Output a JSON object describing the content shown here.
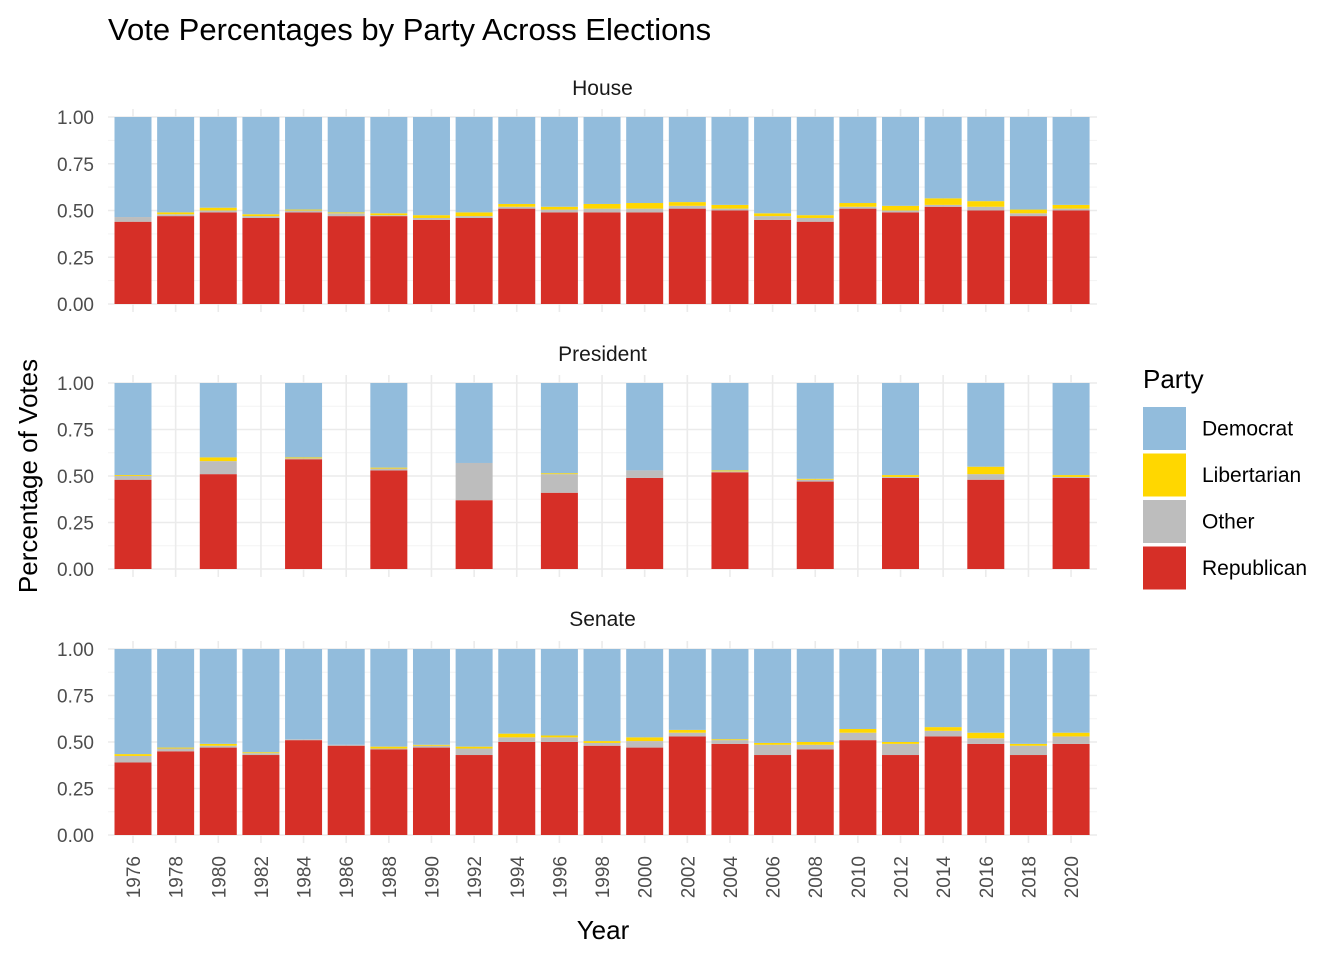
{
  "chart_data": {
    "type": "bar",
    "stacked": true,
    "title": "Vote Percentages by Party Across Elections",
    "xlabel": "Year",
    "ylabel": "Percentage of Votes",
    "ylim": [
      0,
      1
    ],
    "yticks": [
      "0.00",
      "0.25",
      "0.50",
      "0.75",
      "1.00"
    ],
    "grid": true,
    "legend": {
      "title": "Party",
      "position": "right",
      "entries": [
        {
          "name": "Democrat",
          "color": "#92bcdc"
        },
        {
          "name": "Libertarian",
          "color": "#ffd700"
        },
        {
          "name": "Other",
          "color": "#bdbdbd"
        },
        {
          "name": "Republican",
          "color": "#d62f27"
        }
      ]
    },
    "stack_order_bottom_to_top": [
      "Republican",
      "Other",
      "Libertarian",
      "Democrat"
    ],
    "categories": [
      "1976",
      "1978",
      "1980",
      "1982",
      "1984",
      "1986",
      "1988",
      "1990",
      "1992",
      "1994",
      "1996",
      "1998",
      "2000",
      "2002",
      "2004",
      "2006",
      "2008",
      "2010",
      "2012",
      "2014",
      "2016",
      "2018",
      "2020"
    ],
    "facets": [
      {
        "name": "House",
        "years": [
          "1976",
          "1978",
          "1980",
          "1982",
          "1984",
          "1986",
          "1988",
          "1990",
          "1992",
          "1994",
          "1996",
          "1998",
          "2000",
          "2002",
          "2004",
          "2006",
          "2008",
          "2010",
          "2012",
          "2014",
          "2016",
          "2018",
          "2020"
        ],
        "series": [
          {
            "name": "Republican",
            "values": [
              0.44,
              0.47,
              0.49,
              0.46,
              0.49,
              0.47,
              0.47,
              0.45,
              0.46,
              0.51,
              0.49,
              0.49,
              0.49,
              0.51,
              0.5,
              0.45,
              0.44,
              0.51,
              0.49,
              0.52,
              0.5,
              0.47,
              0.5
            ]
          },
          {
            "name": "Other",
            "values": [
              0.025,
              0.01,
              0.01,
              0.01,
              0.01,
              0.015,
              0.005,
              0.01,
              0.01,
              0.01,
              0.015,
              0.02,
              0.02,
              0.015,
              0.01,
              0.02,
              0.02,
              0.01,
              0.01,
              0.01,
              0.02,
              0.015,
              0.01
            ]
          },
          {
            "name": "Libertarian",
            "values": [
              0.0,
              0.01,
              0.015,
              0.01,
              0.005,
              0.005,
              0.01,
              0.015,
              0.02,
              0.015,
              0.015,
              0.025,
              0.03,
              0.02,
              0.02,
              0.015,
              0.015,
              0.02,
              0.025,
              0.035,
              0.03,
              0.02,
              0.02
            ]
          },
          {
            "name": "Democrat",
            "values": [
              0.535,
              0.51,
              0.485,
              0.52,
              0.495,
              0.51,
              0.515,
              0.525,
              0.51,
              0.465,
              0.48,
              0.465,
              0.46,
              0.455,
              0.47,
              0.515,
              0.525,
              0.46,
              0.475,
              0.435,
              0.45,
              0.495,
              0.47
            ]
          }
        ]
      },
      {
        "name": "President",
        "years": [
          "1976",
          "1980",
          "1984",
          "1988",
          "1992",
          "1996",
          "2000",
          "2004",
          "2008",
          "2012",
          "2016",
          "2020"
        ],
        "series": [
          {
            "name": "Republican",
            "values": [
              0.48,
              0.51,
              0.59,
              0.53,
              0.37,
              0.41,
              0.49,
              0.52,
              0.47,
              0.49,
              0.48,
              0.49
            ]
          },
          {
            "name": "Other",
            "values": [
              0.02,
              0.07,
              0.005,
              0.01,
              0.2,
              0.1,
              0.04,
              0.005,
              0.01,
              0.005,
              0.03,
              0.005
            ]
          },
          {
            "name": "Libertarian",
            "values": [
              0.005,
              0.02,
              0.005,
              0.005,
              0.0,
              0.005,
              0.0,
              0.005,
              0.005,
              0.01,
              0.04,
              0.01
            ]
          },
          {
            "name": "Democrat",
            "values": [
              0.495,
              0.4,
              0.4,
              0.455,
              0.43,
              0.485,
              0.47,
              0.47,
              0.515,
              0.495,
              0.45,
              0.495
            ]
          }
        ]
      },
      {
        "name": "Senate",
        "years": [
          "1976",
          "1978",
          "1980",
          "1982",
          "1984",
          "1986",
          "1988",
          "1990",
          "1992",
          "1994",
          "1996",
          "1998",
          "2000",
          "2002",
          "2004",
          "2006",
          "2008",
          "2010",
          "2012",
          "2014",
          "2016",
          "2018",
          "2020"
        ],
        "series": [
          {
            "name": "Republican",
            "values": [
              0.39,
              0.45,
              0.47,
              0.43,
              0.51,
              0.48,
              0.46,
              0.47,
              0.43,
              0.5,
              0.5,
              0.48,
              0.47,
              0.53,
              0.49,
              0.43,
              0.46,
              0.51,
              0.43,
              0.53,
              0.49,
              0.43,
              0.49
            ]
          },
          {
            "name": "Other",
            "values": [
              0.035,
              0.015,
              0.01,
              0.01,
              0.005,
              0.005,
              0.005,
              0.01,
              0.035,
              0.025,
              0.025,
              0.015,
              0.035,
              0.02,
              0.02,
              0.055,
              0.025,
              0.04,
              0.06,
              0.03,
              0.03,
              0.05,
              0.04
            ]
          },
          {
            "name": "Libertarian",
            "values": [
              0.01,
              0.005,
              0.01,
              0.005,
              0.0,
              0.0,
              0.01,
              0.005,
              0.01,
              0.02,
              0.01,
              0.01,
              0.02,
              0.015,
              0.005,
              0.01,
              0.015,
              0.02,
              0.01,
              0.02,
              0.03,
              0.01,
              0.02
            ]
          },
          {
            "name": "Democrat",
            "values": [
              0.565,
              0.53,
              0.51,
              0.555,
              0.485,
              0.515,
              0.525,
              0.515,
              0.525,
              0.455,
              0.465,
              0.495,
              0.475,
              0.435,
              0.485,
              0.505,
              0.5,
              0.43,
              0.5,
              0.42,
              0.45,
              0.51,
              0.45
            ]
          }
        ]
      }
    ]
  }
}
